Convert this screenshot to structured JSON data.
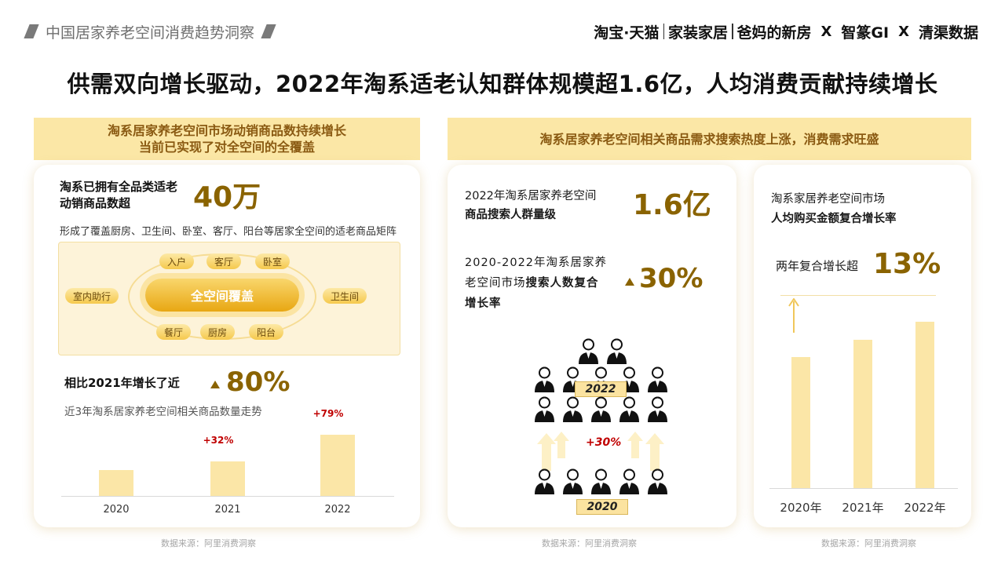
{
  "header": {
    "report_title": "中国居家养老空间消费趋势洞察",
    "brand_a1": "淘宝·天猫",
    "brand_a2": "家装家居",
    "brand_a3": "爸妈的新房",
    "brand_x1": "X",
    "brand_b": "智篆GI",
    "brand_x2": "X",
    "brand_c": "清渠数据"
  },
  "headline": "供需双向增长驱动，2022年淘系适老认知群体规模超1.6亿，人均消费贡献持续增长",
  "left": {
    "banner_line1": "淘系居家养老空间市场动销商品数持续增长",
    "banner_line2": "当前已实现了对全空间的全覆盖",
    "stat_label1": "淘系已拥有全品类适老",
    "stat_label2": "动销商品数超",
    "stat_value": "40万",
    "desc": "形成了覆盖厨房、卫生间、卧室、客厅、阳台等居家全空间的适老商品矩阵",
    "center": "全空间覆盖",
    "spaces": {
      "entry": "入户",
      "living": "客厅",
      "bedroom": "卧室",
      "assist": "室内助行",
      "bathroom": "卫生间",
      "dining": "餐厅",
      "kitchen": "厨房",
      "balcony": "阳台"
    },
    "growth_label": "相比2021年增长了近",
    "growth_value": "80%",
    "chart_title": "近3年淘系居家养老空间相关商品数量走势",
    "source": "数据来源：阿里消费洞察"
  },
  "middle": {
    "banner": "淘系居家养老空间相关商品需求搜索热度上涨，消费需求旺盛",
    "stat1_line1": "2022年淘系居家养老空间",
    "stat1_line2": "商品搜索人群量级",
    "stat1_value": "1.6亿",
    "stat2_line1": "2020-2022年淘系居家养",
    "stat2_line2a": "老空间市场",
    "stat2_line2b": "搜索人数复合",
    "stat2_line3": "增长率",
    "stat2_value": "30%",
    "year_top": "2022",
    "year_bottom": "2020",
    "increase": "+30%",
    "source": "数据来源：阿里消费洞察"
  },
  "right": {
    "title_line1": "淘系家居养老空间市场",
    "title_line2": "人均购买金额复合增长率",
    "cagr_label": "两年复合增长超",
    "cagr_value": "13%",
    "source": "数据来源：阿里消费洞察"
  },
  "chart_data": [
    {
      "type": "bar",
      "title": "近3年淘系居家养老空间相关商品数量走势",
      "categories": [
        "2020",
        "2021",
        "2022"
      ],
      "values": [
        1.0,
        1.32,
        2.36
      ],
      "annotations": [
        "",
        "+32%",
        "+79%"
      ],
      "color": "#fbe6a7"
    },
    {
      "type": "bar",
      "title": "人均购买金额复合增长率",
      "categories": [
        "2020年",
        "2021年",
        "2022年"
      ],
      "values": [
        1.0,
        1.13,
        1.27
      ],
      "color": "#fbe6a7"
    }
  ],
  "colors": {
    "accent": "#8a6300",
    "banner": "#fbe7a6",
    "bar": "#fbe6a7",
    "highlight_red": "#c00000"
  }
}
